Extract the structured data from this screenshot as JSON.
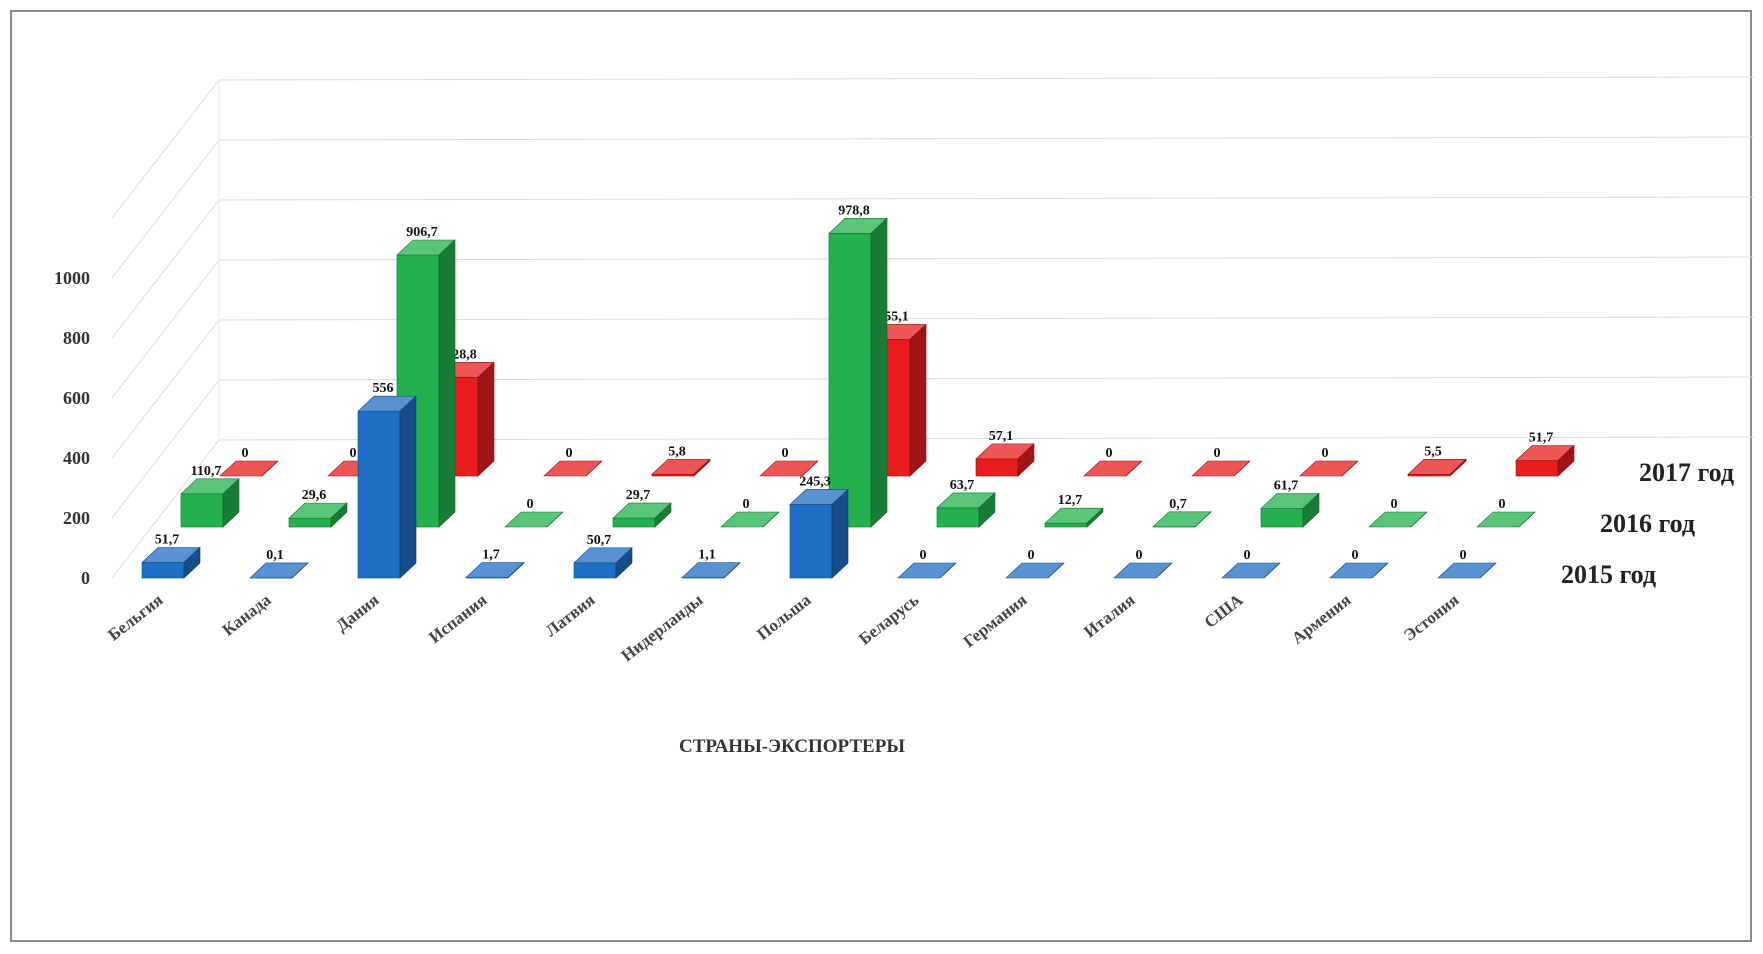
{
  "chart_data": {
    "type": "bar",
    "subtype": "3d-clustered-depth",
    "title": "",
    "xlabel": "СТРАНЫ-ЭКСПОРТЕРЫ",
    "ylabel": "",
    "ylim": [
      0,
      1200
    ],
    "yticks": [
      0,
      200,
      400,
      600,
      800,
      1000
    ],
    "grid": true,
    "categories": [
      "Бельгия",
      "Канада",
      "Дания",
      "Испания",
      "Латвия",
      "Нидерланды",
      "Польша",
      "Беларусь",
      "Германия",
      "Италия",
      "США",
      "Армения",
      "Эстония"
    ],
    "series": [
      {
        "name": "2015 год",
        "color": "#1f6fc4",
        "values": [
          51.7,
          0.1,
          556,
          1.7,
          50.7,
          1.1,
          245.3,
          0,
          0,
          0,
          0,
          0,
          0
        ],
        "labels": [
          "51,7",
          "0,1",
          "556",
          "1,7",
          "50,7",
          "1,1",
          "245,3",
          "0",
          "0",
          "0",
          "0",
          "0",
          "0"
        ]
      },
      {
        "name": "2016 год",
        "color": "#22b14c",
        "values": [
          110.7,
          29.6,
          906.7,
          0,
          29.7,
          0,
          978.8,
          63.7,
          12.7,
          0.7,
          61.7,
          0,
          0
        ],
        "labels": [
          "110,7",
          "29,6",
          "906,7",
          "0",
          "29,7",
          "0",
          "978,8",
          "63,7",
          "12,7",
          "0,7",
          "61,7",
          "0",
          "0"
        ]
      },
      {
        "name": "2017 год",
        "color": "#e81c1c",
        "values": [
          0,
          0,
          328.8,
          0,
          5.8,
          0,
          455.1,
          57.1,
          0,
          0,
          0,
          5.5,
          51.7
        ],
        "labels": [
          "0",
          "0",
          "328,8",
          "0",
          "5,8",
          "0",
          "455,1",
          "57,1",
          "0",
          "0",
          "0",
          "5,5",
          "51,7"
        ]
      }
    ]
  }
}
